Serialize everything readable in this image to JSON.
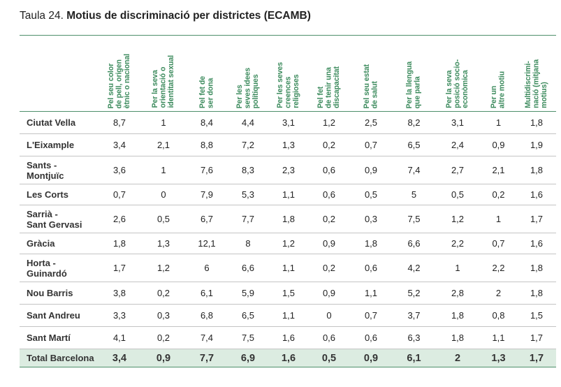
{
  "title": {
    "prefix": "Taula 24. ",
    "main": "Motius de discriminació per districtes (ECAMB)"
  },
  "columns": [
    "Pel seu color\nde pell, origen\nètnic o nacional",
    "Per la seva\norientació o\nidentitat sexual",
    "Pel fet de\nser dona",
    "Per les\nseves idees\npolítiques",
    "Per les seves\ncreences\nreligioses",
    "Pel fet\nde tenir una\ndiscapacitat",
    "Pel seu estat\nde salut",
    "Per la llengua\nque parla",
    "Per la seva\nposició socio-\neconòmica",
    "Per un\naltre motiu",
    "Multidiscrimi-\nnació (mitjana\nmotius)"
  ],
  "rows": [
    {
      "name": "Ciutat Vella",
      "values": [
        "8,7",
        "1",
        "8,4",
        "4,4",
        "3,1",
        "1,2",
        "2,5",
        "8,2",
        "3,1",
        "1",
        "1,8"
      ]
    },
    {
      "name": "L'Eixample",
      "values": [
        "3,4",
        "2,1",
        "8,8",
        "7,2",
        "1,3",
        "0,2",
        "0,7",
        "6,5",
        "2,4",
        "0,9",
        "1,9"
      ]
    },
    {
      "name": "Sants -\nMontjuïc",
      "values": [
        "3,6",
        "1",
        "7,6",
        "8,3",
        "2,3",
        "0,6",
        "0,9",
        "7,4",
        "2,7",
        "2,1",
        "1,8"
      ]
    },
    {
      "name": "Les Corts",
      "values": [
        "0,7",
        "0",
        "7,9",
        "5,3",
        "1,1",
        "0,6",
        "0,5",
        "5",
        "0,5",
        "0,2",
        "1,6"
      ]
    },
    {
      "name": "Sarrià -\nSant Gervasi",
      "values": [
        "2,6",
        "0,5",
        "6,7",
        "7,7",
        "1,8",
        "0,2",
        "0,3",
        "7,5",
        "1,2",
        "1",
        "1,7"
      ]
    },
    {
      "name": "Gràcia",
      "values": [
        "1,8",
        "1,3",
        "12,1",
        "8",
        "1,2",
        "0,9",
        "1,8",
        "6,6",
        "2,2",
        "0,7",
        "1,6"
      ]
    },
    {
      "name": "Horta -\nGuinardó",
      "values": [
        "1,7",
        "1,2",
        "6",
        "6,6",
        "1,1",
        "0,2",
        "0,6",
        "4,2",
        "1",
        "2,2",
        "1,8"
      ]
    },
    {
      "name": "Nou Barris",
      "values": [
        "3,8",
        "0,2",
        "6,1",
        "5,9",
        "1,5",
        "0,9",
        "1,1",
        "5,2",
        "2,8",
        "2",
        "1,8"
      ]
    },
    {
      "name": "Sant Andreu",
      "values": [
        "3,3",
        "0,3",
        "6,8",
        "6,5",
        "1,1",
        "0",
        "0,7",
        "3,7",
        "1,8",
        "0,8",
        "1,5"
      ]
    },
    {
      "name": "Sant Martí",
      "values": [
        "4,1",
        "0,2",
        "7,4",
        "7,5",
        "1,6",
        "0,6",
        "0,6",
        "6,3",
        "1,8",
        "1,1",
        "1,7"
      ]
    }
  ],
  "total": {
    "name": "Total Barcelona",
    "values": [
      "3,4",
      "0,9",
      "7,7",
      "6,9",
      "1,6",
      "0,5",
      "0,9",
      "6,1",
      "2",
      "1,3",
      "1,7"
    ]
  },
  "colors": {
    "accent_green": "#3b8a5c",
    "total_row_bg": "#dcece1",
    "rule": "#c4c4c4"
  }
}
